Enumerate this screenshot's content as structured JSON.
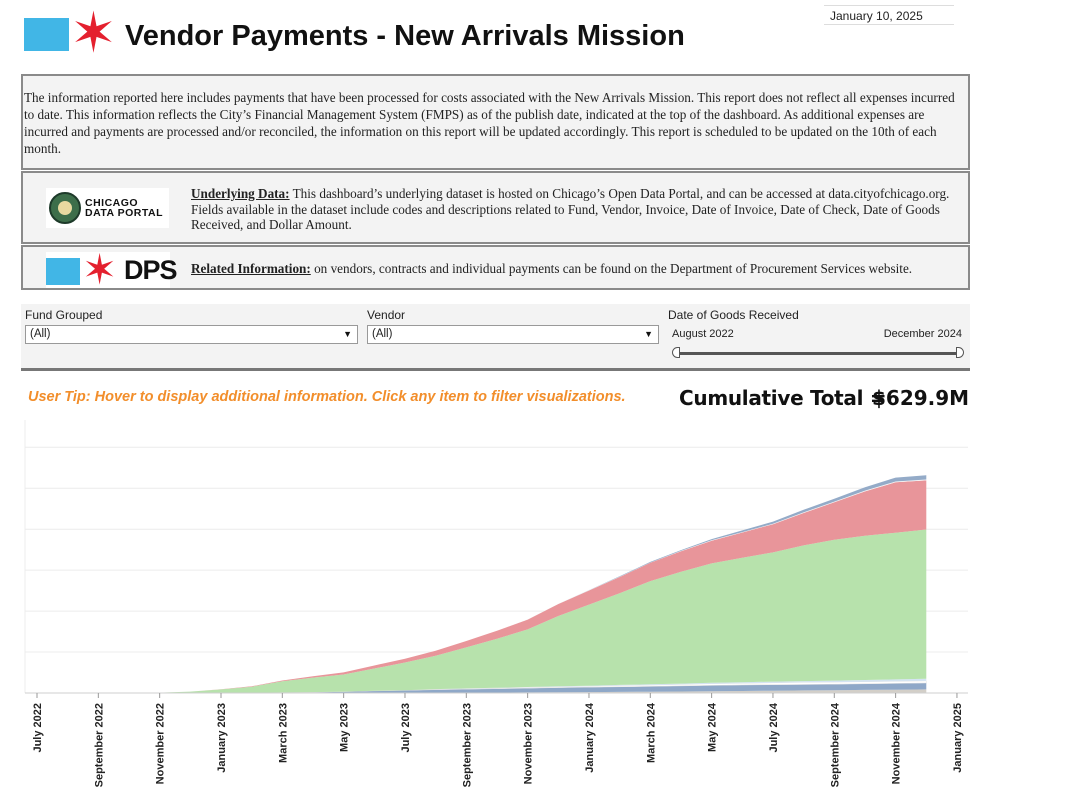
{
  "header": {
    "title": "Vendor Payments - New Arrivals Mission",
    "publish_date": "January 10, 2025",
    "logo_icon": "chicago-flag-star-icon"
  },
  "info": {
    "disclaimer": "The information reported here includes payments that have been processed for costs associated with the New Arrivals Mission.  This report does not reflect all expenses incurred to date.  This information reflects the City’s Financial Management System (FMPS) as of the publish date, indicated at the top of the dashboard.  As additional expenses are incurred and payments are processed and/or reconciled, the information on this report will be updated accordingly.  This report is scheduled to be updated on the 10th of each month.",
    "underlying_label": "Underlying Data:",
    "underlying_text": " This dashboard’s underlying dataset is hosted on Chicago’s Open Data Portal, and can be accessed at data.cityofchicago.org.  Fields available in the dataset include codes and descriptions related to Fund, Vendor, Invoice, Date of Invoice, Date of Check, Date of Goods Received, and Dollar Amount.",
    "related_label": "Related Information:",
    "related_text": " on vendors, contracts and individual payments can be found on the Department of Procurement Services website.",
    "cdp_logo_text_1": "CHICAGO",
    "cdp_logo_text_2": "DATA PORTAL",
    "dps_logo_text": "DPS"
  },
  "filters": {
    "fund_label": "Fund Grouped",
    "fund_value": "(All)",
    "vendor_label": "Vendor",
    "vendor_value": "(All)",
    "date_label": "Date of Goods Received",
    "date_start": "August 2022",
    "date_end": "December 2024"
  },
  "tip": "User Tip: Hover to display additional information.  Click any item to filter visualizations.",
  "cumulative": {
    "label": "Cumulative Total =",
    "value": "$629.9M"
  },
  "chart_data": {
    "type": "area",
    "stacked": true,
    "grid": true,
    "legend": "none",
    "x_ticks": [
      "July 2022",
      "September 2022",
      "November 2022",
      "January 2023",
      "March 2023",
      "May 2023",
      "July 2023",
      "September 2023",
      "November 2023",
      "January 2024",
      "March 2024",
      "May 2024",
      "July 2024",
      "September 2024",
      "November 2024",
      "January 2025"
    ],
    "x": [
      "2022-08",
      "2022-09",
      "2022-10",
      "2022-11",
      "2022-12",
      "2023-01",
      "2023-02",
      "2023-03",
      "2023-04",
      "2023-05",
      "2023-06",
      "2023-07",
      "2023-08",
      "2023-09",
      "2023-10",
      "2023-11",
      "2023-12",
      "2024-01",
      "2024-02",
      "2024-03",
      "2024-04",
      "2024-05",
      "2024-06",
      "2024-07",
      "2024-08",
      "2024-09",
      "2024-10",
      "2024-11",
      "2024-12"
    ],
    "series": [
      {
        "color": "#d3cfc8",
        "values": [
          0,
          0,
          0,
          0,
          0.1,
          0.1,
          0.1,
          0.2,
          0.2,
          0.3,
          0.4,
          0.5,
          0.7,
          0.9,
          1.1,
          1.3,
          1.6,
          2,
          2.5,
          3,
          3.6,
          4.2,
          4.8,
          5.4,
          6,
          6.6,
          7.2,
          7.8,
          8.4
        ]
      },
      {
        "color": "#8fa8c8",
        "values": [
          0,
          0,
          0,
          0,
          0.1,
          0.3,
          0.6,
          1.2,
          2,
          3,
          4.5,
          5.5,
          7,
          8,
          9,
          10,
          11,
          11.5,
          12,
          12.5,
          13,
          13.5,
          14,
          14,
          14,
          14,
          14.3,
          14.6,
          15
        ]
      },
      {
        "color": "#ffffff",
        "values": [
          0,
          0,
          0,
          0,
          0,
          0,
          0,
          0,
          0,
          0,
          0.5,
          0.5,
          1,
          1.5,
          1.5,
          2,
          2,
          2.5,
          3,
          3,
          3.5,
          4,
          4,
          4.5,
          5,
          5,
          5,
          5,
          5
        ]
      },
      {
        "color": "#d4e4f2",
        "values": [
          0,
          0,
          0,
          0,
          0,
          0,
          0,
          0,
          0,
          0,
          0,
          0,
          0.5,
          0.5,
          0.5,
          0.8,
          1,
          1.2,
          1.5,
          1.8,
          2,
          2.2,
          2.5,
          2.8,
          3,
          3.5,
          4,
          4.5,
          5
        ]
      },
      {
        "color": "#b7e2ac",
        "values": [
          0,
          0,
          0,
          1,
          3,
          8,
          14,
          26,
          34,
          40,
          52,
          65,
          78,
          96,
          115,
          135,
          165,
          190,
          215,
          242,
          262,
          280,
          292,
          303,
          318,
          330,
          338,
          344,
          350
        ]
      },
      {
        "color": "#e8959a",
        "values": [
          0,
          0,
          0,
          0,
          0,
          0.5,
          1,
          2,
          3,
          5,
          7,
          9,
          12,
          15,
          19,
          23,
          28,
          33,
          38,
          43,
          48,
          53,
          59,
          66,
          76,
          88,
          104,
          118,
          115
        ]
      },
      {
        "color": "#f4f4f4",
        "values": [
          0,
          0,
          0,
          0,
          0,
          0,
          0,
          0,
          0,
          0,
          0,
          0,
          0,
          0,
          0,
          0.5,
          0.5,
          0.5,
          0.5,
          0.5,
          1,
          1,
          1,
          1,
          1.5,
          1.5,
          2,
          2,
          2
        ]
      },
      {
        "color": "#94abc8",
        "values": [
          0,
          0,
          0,
          0,
          0,
          0,
          0,
          0,
          0,
          0,
          0,
          0,
          0,
          0,
          0,
          0,
          0,
          0.5,
          1,
          1.5,
          2,
          3,
          4,
          5,
          6,
          7,
          8,
          9,
          10
        ]
      }
    ],
    "ylim": [
      0,
      640
    ]
  }
}
